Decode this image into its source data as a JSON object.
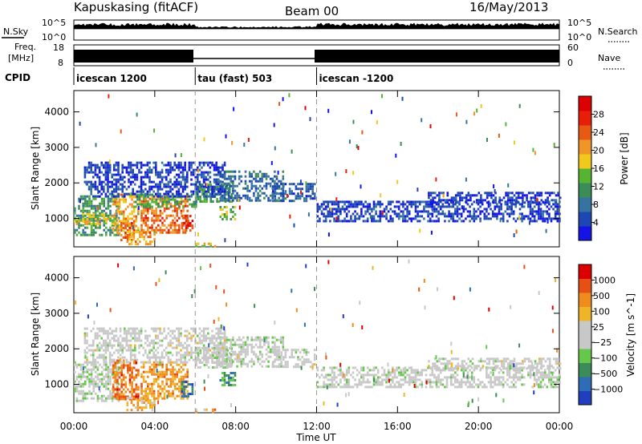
{
  "header": {
    "station": "Kapuskasing (fitACF)",
    "beam": "Beam 00",
    "date": "16/May/2013"
  },
  "panels": {
    "nsky_label": "N.Sky",
    "nsky_tick_top": "10^5",
    "nsky_tick_bottom": "10^0",
    "nsearch_label": "N.Search",
    "nsearch_tick_top": "10^5",
    "nsearch_tick_bottom": "10^0",
    "freq_label": "Freq.",
    "freq_unit": "[MHz]",
    "freq_tick_top": "18",
    "freq_tick_bottom": "8",
    "nave_label": "Nave",
    "nave_tick_top": "60",
    "nave_tick_bottom": "0",
    "cpid_label": "CPID"
  },
  "cpid_segments": [
    {
      "start_hour": 0,
      "end_hour": 6,
      "label": "icescan 1200"
    },
    {
      "start_hour": 6,
      "end_hour": 12,
      "label": "tau (fast) 503"
    },
    {
      "start_hour": 12,
      "end_hour": 24,
      "label": "icescan -1200"
    }
  ],
  "time_axis": {
    "label": "Time UT",
    "ticks": [
      "00:00",
      "04:00",
      "08:00",
      "12:00",
      "16:00",
      "20:00",
      "00:00"
    ]
  },
  "chart_data": [
    {
      "type": "heatmap",
      "ylabel": "Slant Range [km]",
      "xlabel": "Time UT",
      "xlim_hours": [
        0,
        24
      ],
      "ylim": [
        200,
        4600
      ],
      "yticks": [
        1000,
        2000,
        3000,
        4000
      ],
      "colorbar": {
        "label": "Power [dB]",
        "ticks": [
          "28",
          "24",
          "20",
          "16",
          "12",
          "8",
          "4"
        ],
        "colors": [
          "#1414e6",
          "#1e46b4",
          "#3773a0",
          "#3c8c5a",
          "#55b432",
          "#f0c81e",
          "#f09628",
          "#e65a14",
          "#e61e0a",
          "#dc0000"
        ]
      },
      "regions": [
        {
          "t0": 0.0,
          "t1": 2.2,
          "r0": 550,
          "r1": 1650,
          "level": 0.35
        },
        {
          "t0": 0.0,
          "t1": 2.0,
          "r0": 850,
          "r1": 1150,
          "level": 0.55
        },
        {
          "t0": 1.9,
          "t1": 3.2,
          "r0": 600,
          "r1": 1700,
          "level": 0.6
        },
        {
          "t0": 2.3,
          "t1": 3.0,
          "r0": 400,
          "r1": 900,
          "level": 0.75
        },
        {
          "t0": 2.6,
          "t1": 4.0,
          "r0": 250,
          "r1": 650,
          "level": 0.6
        },
        {
          "t0": 3.3,
          "t1": 5.6,
          "r0": 600,
          "r1": 1650,
          "level": 0.72
        },
        {
          "t0": 3.0,
          "t1": 6.0,
          "r0": 1350,
          "r1": 1700,
          "level": 0.4
        },
        {
          "t0": 5.3,
          "t1": 5.9,
          "r0": 650,
          "r1": 1100,
          "level": 0.85
        },
        {
          "t0": 6.0,
          "t1": 7.8,
          "r0": 1450,
          "r1": 2050,
          "level": 0.38
        },
        {
          "t0": 7.2,
          "t1": 10.3,
          "r0": 1500,
          "r1": 2350,
          "level": 0.24
        },
        {
          "t0": 7.2,
          "t1": 8.0,
          "r0": 950,
          "r1": 1350,
          "level": 0.45
        },
        {
          "t0": 9.8,
          "t1": 11.9,
          "r0": 1500,
          "r1": 2000,
          "level": 0.2
        },
        {
          "t0": 6.0,
          "t1": 7.0,
          "r0": 220,
          "r1": 320,
          "level": 0.55
        },
        {
          "t0": 12.0,
          "t1": 24.0,
          "r0": 950,
          "r1": 1500,
          "level": 0.13
        },
        {
          "t0": 17.5,
          "t1": 24.0,
          "r0": 1450,
          "r1": 1750,
          "level": 0.11
        },
        {
          "t0": 0.5,
          "t1": 7.5,
          "r0": 1650,
          "r1": 2600,
          "level": 0.14
        }
      ]
    },
    {
      "type": "heatmap",
      "ylabel": "Slant Range [km]",
      "xlabel": "Time UT",
      "xlim_hours": [
        0,
        24
      ],
      "ylim": [
        200,
        4600
      ],
      "yticks": [
        1000,
        2000,
        3000,
        4000
      ],
      "colorbar": {
        "label": "Velocity [m s^-1]",
        "ticks": [
          "1000",
          "500",
          "100",
          "25",
          "−25",
          "−100",
          "−500",
          "−1000"
        ],
        "colors": [
          "#1f3fbf",
          "#2e6db5",
          "#3c8c5a",
          "#66c84a",
          "#c8c8c8",
          "#c8c8c8",
          "#f0b428",
          "#f08c1e",
          "#e65014",
          "#dc0000"
        ]
      },
      "regions": [
        {
          "t0": 0.0,
          "t1": 2.2,
          "r0": 550,
          "r1": 1650,
          "level": 0.45
        },
        {
          "t0": 1.9,
          "t1": 3.2,
          "r0": 600,
          "r1": 1700,
          "level": 0.8
        },
        {
          "t0": 2.6,
          "t1": 4.0,
          "r0": 250,
          "r1": 650,
          "level": 0.65
        },
        {
          "t0": 3.3,
          "t1": 5.6,
          "r0": 600,
          "r1": 1650,
          "level": 0.72
        },
        {
          "t0": 5.3,
          "t1": 5.9,
          "r0": 650,
          "r1": 1100,
          "level": 0.2
        },
        {
          "t0": 6.0,
          "t1": 7.8,
          "r0": 1450,
          "r1": 2050,
          "level": 0.45
        },
        {
          "t0": 7.2,
          "t1": 10.3,
          "r0": 1500,
          "r1": 2350,
          "level": 0.48
        },
        {
          "t0": 7.2,
          "t1": 8.0,
          "r0": 950,
          "r1": 1350,
          "level": 0.25
        },
        {
          "t0": 9.8,
          "t1": 11.9,
          "r0": 1500,
          "r1": 2000,
          "level": 0.5
        },
        {
          "t0": 6.0,
          "t1": 7.0,
          "r0": 220,
          "r1": 320,
          "level": 0.7
        },
        {
          "t0": 12.0,
          "t1": 24.0,
          "r0": 950,
          "r1": 1500,
          "level": 0.48
        },
        {
          "t0": 17.5,
          "t1": 24.0,
          "r0": 1450,
          "r1": 1750,
          "level": 0.5
        },
        {
          "t0": 0.5,
          "t1": 7.5,
          "r0": 1650,
          "r1": 2600,
          "level": 0.5
        }
      ]
    }
  ]
}
